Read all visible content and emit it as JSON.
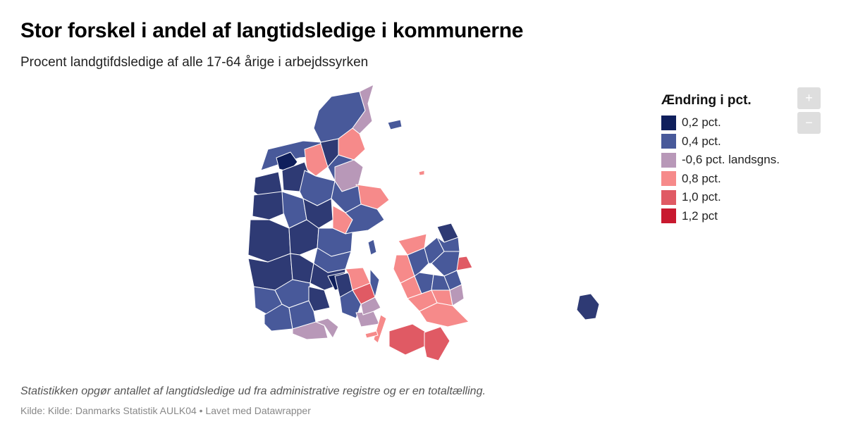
{
  "header": {
    "title": "Stor forskel i andel af langtidsledige i kommunerne",
    "subtitle": "Procent landgtifdsledige af alle 17-64 årige i arbejdssyrken"
  },
  "legend": {
    "title": "Ændring i pct.",
    "items": [
      {
        "label": "0,2 pct.",
        "color": "#0f1f5c"
      },
      {
        "label": "0,4 pct.",
        "color": "#48599a"
      },
      {
        "label": "-0,6 pct. landsgns.",
        "color": "#b898b8"
      },
      {
        "label": "0,8 pct.",
        "color": "#f68a8a"
      },
      {
        "label": "1,0 pct.",
        "color": "#e05a64"
      },
      {
        "label": "1,2 pct",
        "color": "#c8192f"
      }
    ]
  },
  "zoom": {
    "in_label": "+",
    "out_label": "−"
  },
  "footer": {
    "notes": "Statistikken opgør antallet af langtidsledige ud fra administrative registre og er en totaltælling.",
    "source": "Kilde: Kilde: Danmarks Statistik AULK04 • Lavet med Datawrapper"
  },
  "map": {
    "colors": {
      "dark": "#0f1f5c",
      "navy": "#2e3a74",
      "blue": "#48599a",
      "purple": "#b898b8",
      "pink": "#f68a8a",
      "red": "#e05a64",
      "crimson": "#c8192f"
    }
  }
}
